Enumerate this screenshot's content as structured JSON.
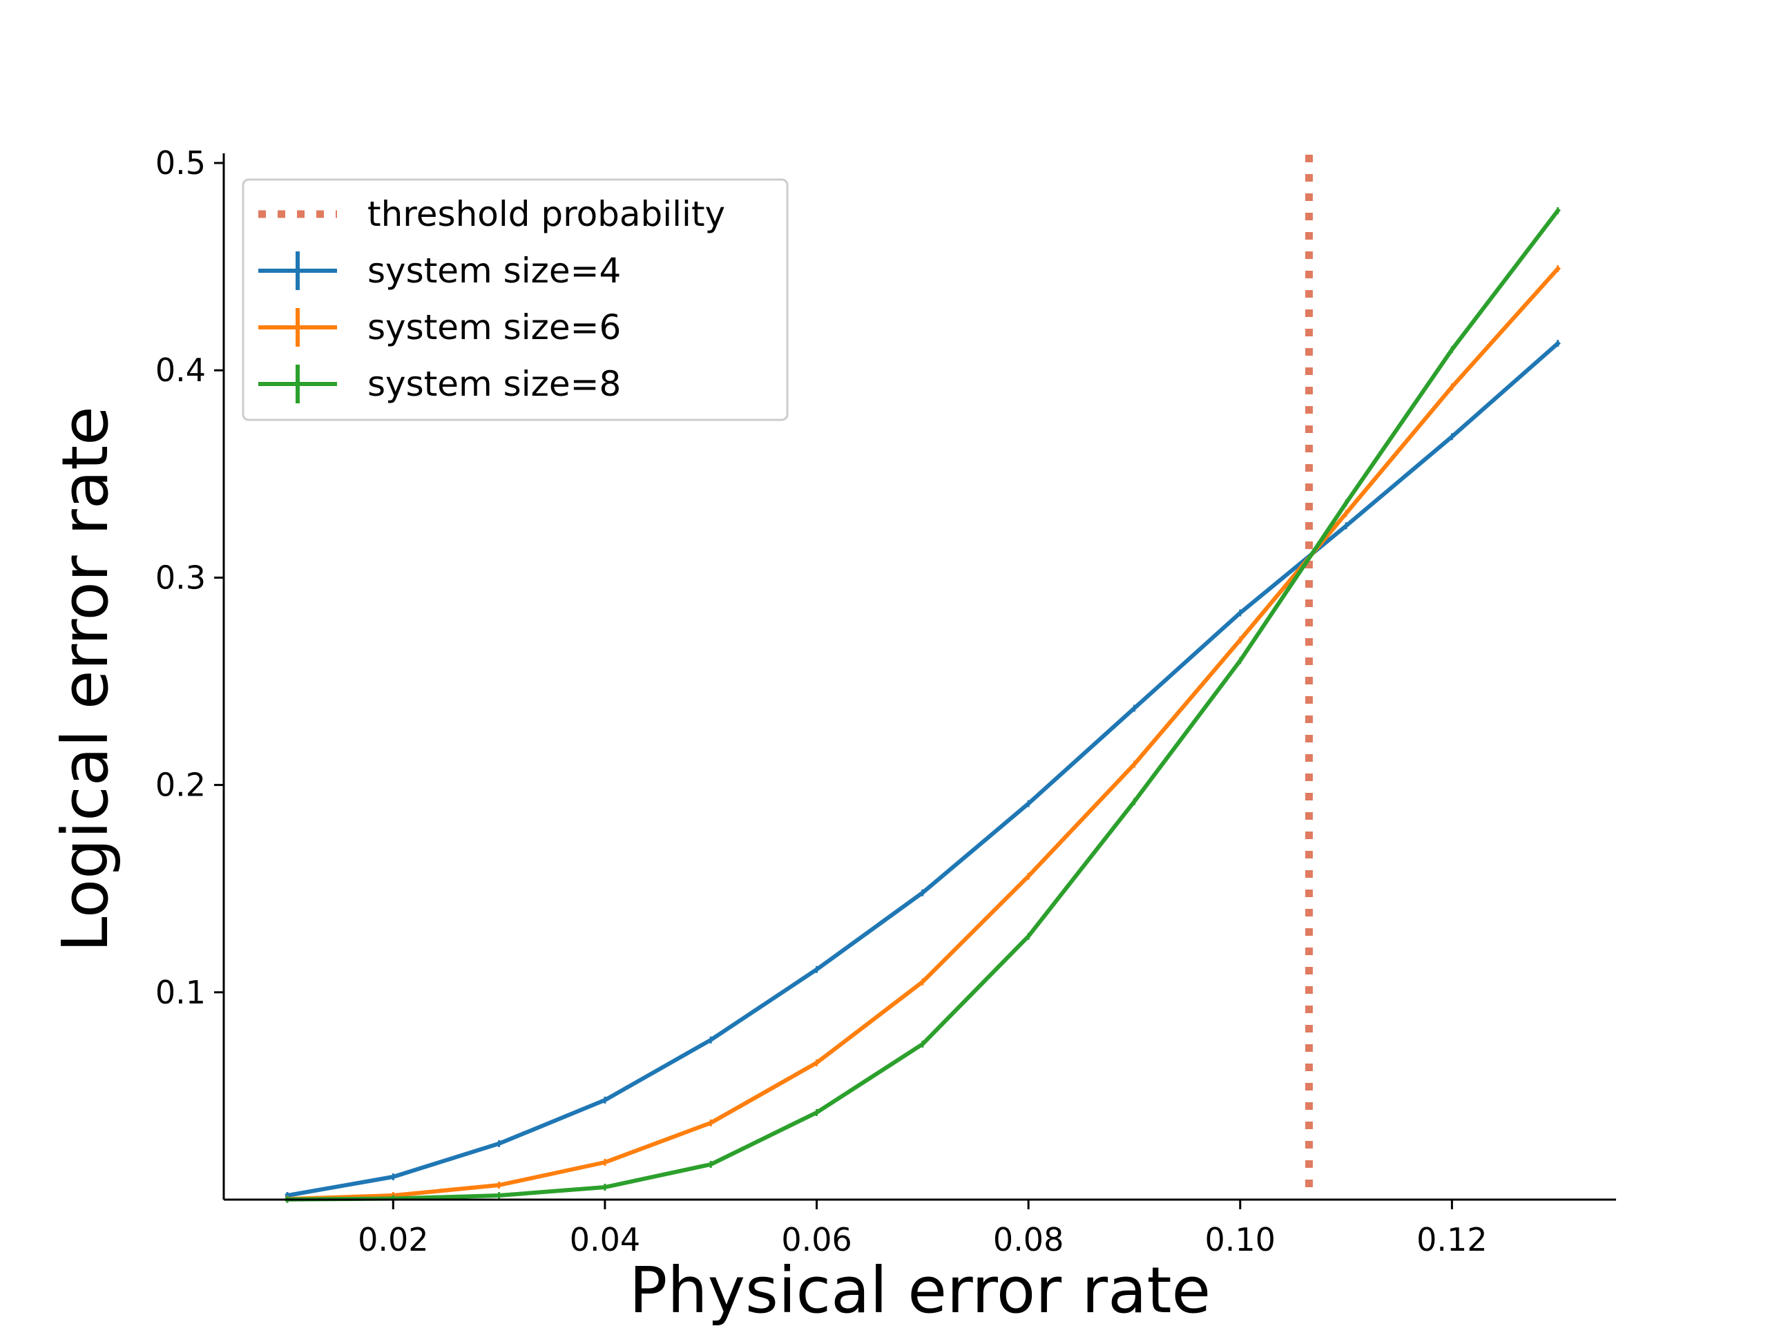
{
  "chart_data": {
    "type": "line",
    "title": "",
    "xlabel": "Physical error rate",
    "ylabel": "Logical error rate",
    "xlim": [
      0.004,
      0.1355
    ],
    "ylim": [
      0.0,
      0.502
    ],
    "x_ticks": [
      0.02,
      0.04,
      0.06,
      0.08,
      0.1,
      0.12
    ],
    "x_tick_labels": [
      "0.02",
      "0.04",
      "0.06",
      "0.08",
      "0.10",
      "0.12"
    ],
    "y_ticks": [
      0.1,
      0.2,
      0.3,
      0.4,
      0.5
    ],
    "y_tick_labels": [
      "0.1",
      "0.2",
      "0.3",
      "0.4",
      "0.5"
    ],
    "grid": false,
    "legend_position": "top-left",
    "threshold": {
      "name": "threshold probability",
      "x": 0.1065,
      "style": "dotted",
      "color": "#e07b5f"
    },
    "x": [
      0.01,
      0.02,
      0.03,
      0.04,
      0.05,
      0.06,
      0.07,
      0.08,
      0.09,
      0.1,
      0.11,
      0.12,
      0.13
    ],
    "series": [
      {
        "name": "system size=4",
        "color": "#1f77b4",
        "values": [
          0.002,
          0.011,
          0.027,
          0.048,
          0.077,
          0.111,
          0.148,
          0.191,
          0.237,
          0.283,
          0.325,
          0.368,
          0.413
        ]
      },
      {
        "name": "system size=6",
        "color": "#ff7f0e",
        "values": [
          0.0003,
          0.002,
          0.007,
          0.018,
          0.037,
          0.066,
          0.105,
          0.156,
          0.21,
          0.27,
          0.331,
          0.392,
          0.449
        ]
      },
      {
        "name": "system size=8",
        "color": "#2ca02c",
        "values": [
          0.0001,
          0.0005,
          0.002,
          0.006,
          0.017,
          0.042,
          0.075,
          0.127,
          0.192,
          0.26,
          0.336,
          0.41,
          0.477
        ]
      }
    ]
  }
}
